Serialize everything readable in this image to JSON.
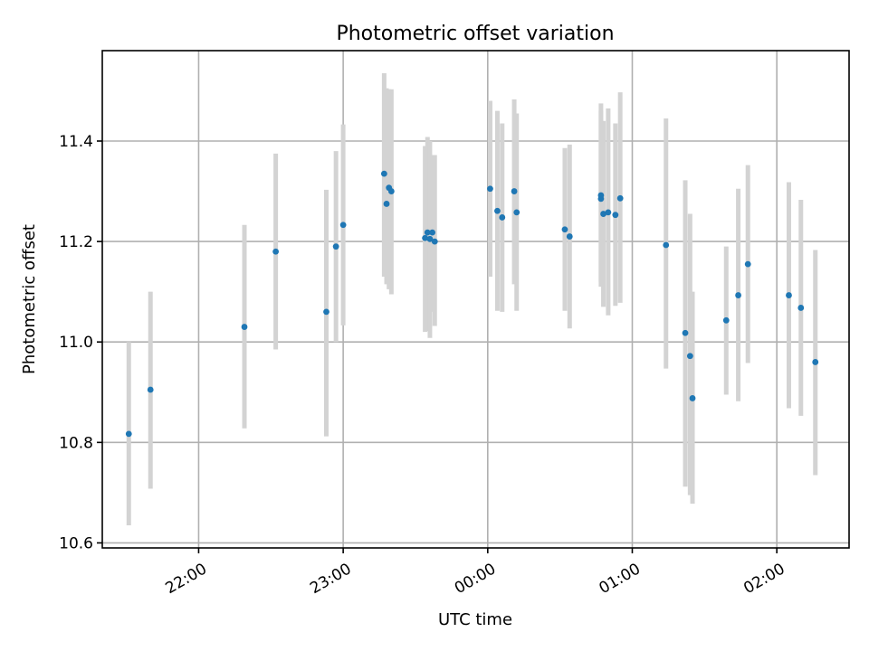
{
  "chart_data": {
    "type": "scatter",
    "title": "Photometric offset variation",
    "xlabel": "UTC time",
    "ylabel": "Photometric offset",
    "xlim": [
      "21:20",
      "02:30"
    ],
    "ylim": [
      10.59,
      11.58
    ],
    "xticks": [
      {
        "label": "22:00",
        "value": "22:00"
      },
      {
        "label": "23:00",
        "value": "23:00"
      },
      {
        "label": "00:00",
        "value": "00:00"
      },
      {
        "label": "01:00",
        "value": "01:00"
      },
      {
        "label": "02:00",
        "value": "02:00"
      }
    ],
    "yticks": [
      {
        "label": "10.6",
        "value": 10.6
      },
      {
        "label": "10.8",
        "value": 10.8
      },
      {
        "label": "11.0",
        "value": 11.0
      },
      {
        "label": "11.2",
        "value": 11.2
      },
      {
        "label": "11.4",
        "value": 11.4
      }
    ],
    "grid": true,
    "marker_color": "#1f77b4",
    "errorbar_color": "#d3d3d3",
    "points": [
      {
        "x": "21:31",
        "y": 10.817,
        "ylo": 10.635,
        "yhi": 11.0
      },
      {
        "x": "21:40",
        "y": 10.905,
        "ylo": 10.708,
        "yhi": 11.1
      },
      {
        "x": "22:19",
        "y": 11.03,
        "ylo": 10.828,
        "yhi": 11.233
      },
      {
        "x": "22:32",
        "y": 11.18,
        "ylo": 10.985,
        "yhi": 11.375
      },
      {
        "x": "22:53",
        "y": 11.06,
        "ylo": 10.812,
        "yhi": 11.303
      },
      {
        "x": "22:57",
        "y": 11.19,
        "ylo": 11.0,
        "yhi": 11.38
      },
      {
        "x": "23:00",
        "y": 11.233,
        "ylo": 11.033,
        "yhi": 11.433
      },
      {
        "x": "23:17",
        "y": 11.335,
        "ylo": 11.13,
        "yhi": 11.535
      },
      {
        "x": "23:18",
        "y": 11.275,
        "ylo": 11.115,
        "yhi": 11.505
      },
      {
        "x": "23:19",
        "y": 11.307,
        "ylo": 11.105,
        "yhi": 11.503
      },
      {
        "x": "23:20",
        "y": 11.3,
        "ylo": 11.095,
        "yhi": 11.503
      },
      {
        "x": "23:34",
        "y": 11.207,
        "ylo": 11.02,
        "yhi": 11.39
      },
      {
        "x": "23:35",
        "y": 11.218,
        "ylo": 11.022,
        "yhi": 11.408
      },
      {
        "x": "23:36",
        "y": 11.205,
        "ylo": 11.008,
        "yhi": 11.4
      },
      {
        "x": "23:37",
        "y": 11.218,
        "ylo": 11.06,
        "yhi": 11.372
      },
      {
        "x": "23:38",
        "y": 11.2,
        "ylo": 11.032,
        "yhi": 11.372
      },
      {
        "x": "00:01",
        "y": 11.305,
        "ylo": 11.13,
        "yhi": 11.48
      },
      {
        "x": "00:04",
        "y": 11.261,
        "ylo": 11.062,
        "yhi": 11.46
      },
      {
        "x": "00:06",
        "y": 11.248,
        "ylo": 11.06,
        "yhi": 11.435
      },
      {
        "x": "00:11",
        "y": 11.3,
        "ylo": 11.115,
        "yhi": 11.483
      },
      {
        "x": "00:12",
        "y": 11.258,
        "ylo": 11.062,
        "yhi": 11.455
      },
      {
        "x": "00:32",
        "y": 11.224,
        "ylo": 11.062,
        "yhi": 11.386
      },
      {
        "x": "00:34",
        "y": 11.21,
        "ylo": 11.027,
        "yhi": 11.393
      },
      {
        "x": "00:47",
        "y": 11.285,
        "ylo": 11.11,
        "yhi": 11.475
      },
      {
        "x": "00:47",
        "y": 11.292,
        "ylo": 11.12,
        "yhi": 11.46
      },
      {
        "x": "00:48",
        "y": 11.255,
        "ylo": 11.07,
        "yhi": 11.44
      },
      {
        "x": "00:50",
        "y": 11.258,
        "ylo": 11.053,
        "yhi": 11.465
      },
      {
        "x": "00:53",
        "y": 11.253,
        "ylo": 11.072,
        "yhi": 11.435
      },
      {
        "x": "00:55",
        "y": 11.286,
        "ylo": 11.078,
        "yhi": 11.497
      },
      {
        "x": "01:14",
        "y": 11.193,
        "ylo": 10.947,
        "yhi": 11.445
      },
      {
        "x": "01:22",
        "y": 11.018,
        "ylo": 10.712,
        "yhi": 11.322
      },
      {
        "x": "01:24",
        "y": 10.972,
        "ylo": 10.695,
        "yhi": 11.255
      },
      {
        "x": "01:25",
        "y": 10.888,
        "ylo": 10.678,
        "yhi": 11.1
      },
      {
        "x": "01:39",
        "y": 11.043,
        "ylo": 10.895,
        "yhi": 11.19
      },
      {
        "x": "01:44",
        "y": 11.093,
        "ylo": 10.882,
        "yhi": 11.305
      },
      {
        "x": "01:48",
        "y": 11.155,
        "ylo": 10.958,
        "yhi": 11.352
      },
      {
        "x": "02:05",
        "y": 11.093,
        "ylo": 10.868,
        "yhi": 11.318
      },
      {
        "x": "02:10",
        "y": 11.068,
        "ylo": 10.853,
        "yhi": 11.283
      },
      {
        "x": "02:16",
        "y": 10.96,
        "ylo": 10.735,
        "yhi": 11.183
      }
    ]
  }
}
